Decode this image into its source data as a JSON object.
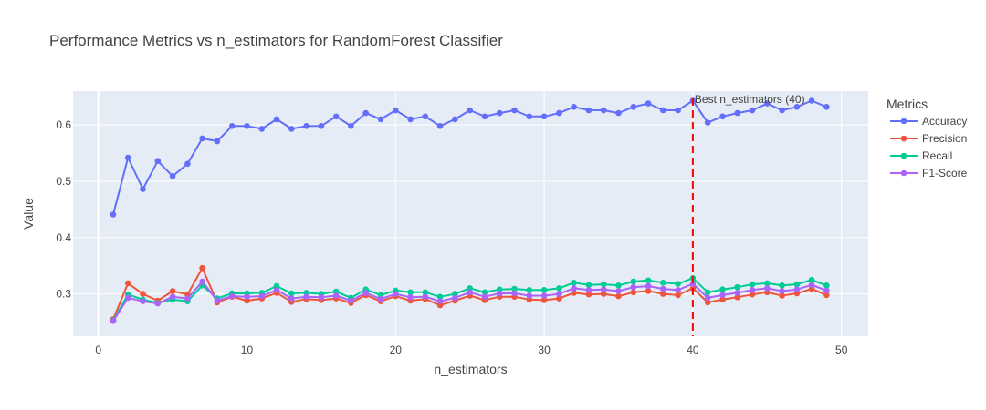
{
  "chart_data": {
    "type": "line",
    "title": "Performance Metrics vs n_estimators for RandomForest Classifier",
    "xlabel": "n_estimators",
    "ylabel": "Value",
    "xlim": [
      -1.7,
      51.8
    ],
    "ylim": [
      0.225,
      0.66
    ],
    "x_ticks": [
      0,
      10,
      20,
      30,
      40,
      50
    ],
    "y_ticks": [
      0.3,
      0.4,
      0.5,
      0.6
    ],
    "x_tick_labels": [
      "0",
      "10",
      "20",
      "30",
      "40",
      "50"
    ],
    "y_tick_labels": [
      "0.3",
      "0.4",
      "0.5",
      "0.6"
    ],
    "grid": true,
    "legend": {
      "title": "Metrics",
      "position": "right"
    },
    "x": [
      1,
      2,
      3,
      4,
      5,
      6,
      7,
      8,
      9,
      10,
      11,
      12,
      13,
      14,
      15,
      16,
      17,
      18,
      19,
      20,
      21,
      22,
      23,
      24,
      25,
      26,
      27,
      28,
      29,
      30,
      31,
      32,
      33,
      34,
      35,
      36,
      37,
      38,
      39,
      40,
      41,
      42,
      43,
      44,
      45,
      46,
      47,
      48,
      49
    ],
    "series": [
      {
        "name": "Accuracy",
        "color": "#636efa",
        "values": [
          0.441,
          0.542,
          0.486,
          0.536,
          0.509,
          0.531,
          0.576,
          0.571,
          0.598,
          0.598,
          0.593,
          0.61,
          0.593,
          0.598,
          0.598,
          0.615,
          0.598,
          0.621,
          0.61,
          0.626,
          0.61,
          0.615,
          0.598,
          0.61,
          0.626,
          0.615,
          0.621,
          0.626,
          0.615,
          0.615,
          0.621,
          0.632,
          0.626,
          0.626,
          0.621,
          0.632,
          0.638,
          0.626,
          0.626,
          0.643,
          0.604,
          0.615,
          0.621,
          0.626,
          0.638,
          0.626,
          0.632,
          0.643,
          0.632
        ]
      },
      {
        "name": "Precision",
        "color": "#ef553b",
        "values": [
          0.255,
          0.319,
          0.3,
          0.288,
          0.305,
          0.299,
          0.346,
          0.285,
          0.295,
          0.288,
          0.292,
          0.302,
          0.286,
          0.291,
          0.289,
          0.292,
          0.284,
          0.298,
          0.287,
          0.296,
          0.288,
          0.291,
          0.28,
          0.288,
          0.297,
          0.289,
          0.295,
          0.295,
          0.29,
          0.289,
          0.292,
          0.302,
          0.299,
          0.3,
          0.296,
          0.303,
          0.305,
          0.3,
          0.298,
          0.31,
          0.285,
          0.29,
          0.294,
          0.299,
          0.303,
          0.297,
          0.301,
          0.309,
          0.298
        ]
      },
      {
        "name": "Recall",
        "color": "#00cc96",
        "values": [
          0.253,
          0.299,
          0.29,
          0.284,
          0.29,
          0.287,
          0.315,
          0.292,
          0.301,
          0.301,
          0.302,
          0.314,
          0.301,
          0.302,
          0.3,
          0.304,
          0.293,
          0.308,
          0.298,
          0.306,
          0.303,
          0.303,
          0.295,
          0.3,
          0.31,
          0.303,
          0.308,
          0.309,
          0.307,
          0.307,
          0.31,
          0.32,
          0.316,
          0.317,
          0.315,
          0.322,
          0.324,
          0.32,
          0.318,
          0.328,
          0.303,
          0.308,
          0.312,
          0.317,
          0.319,
          0.315,
          0.317,
          0.325,
          0.315
        ]
      },
      {
        "name": "F1-Score",
        "color": "#ab63fa",
        "values": [
          0.252,
          0.293,
          0.287,
          0.283,
          0.295,
          0.292,
          0.322,
          0.288,
          0.296,
          0.295,
          0.296,
          0.307,
          0.292,
          0.295,
          0.294,
          0.297,
          0.288,
          0.302,
          0.291,
          0.3,
          0.294,
          0.295,
          0.287,
          0.293,
          0.303,
          0.295,
          0.301,
          0.301,
          0.297,
          0.297,
          0.3,
          0.31,
          0.307,
          0.308,
          0.305,
          0.312,
          0.314,
          0.309,
          0.307,
          0.318,
          0.293,
          0.298,
          0.302,
          0.307,
          0.31,
          0.305,
          0.308,
          0.316,
          0.306
        ]
      }
    ],
    "annotation": {
      "x": 40,
      "text": "Best n_estimators (40)",
      "line_color": "#ff0000"
    }
  }
}
